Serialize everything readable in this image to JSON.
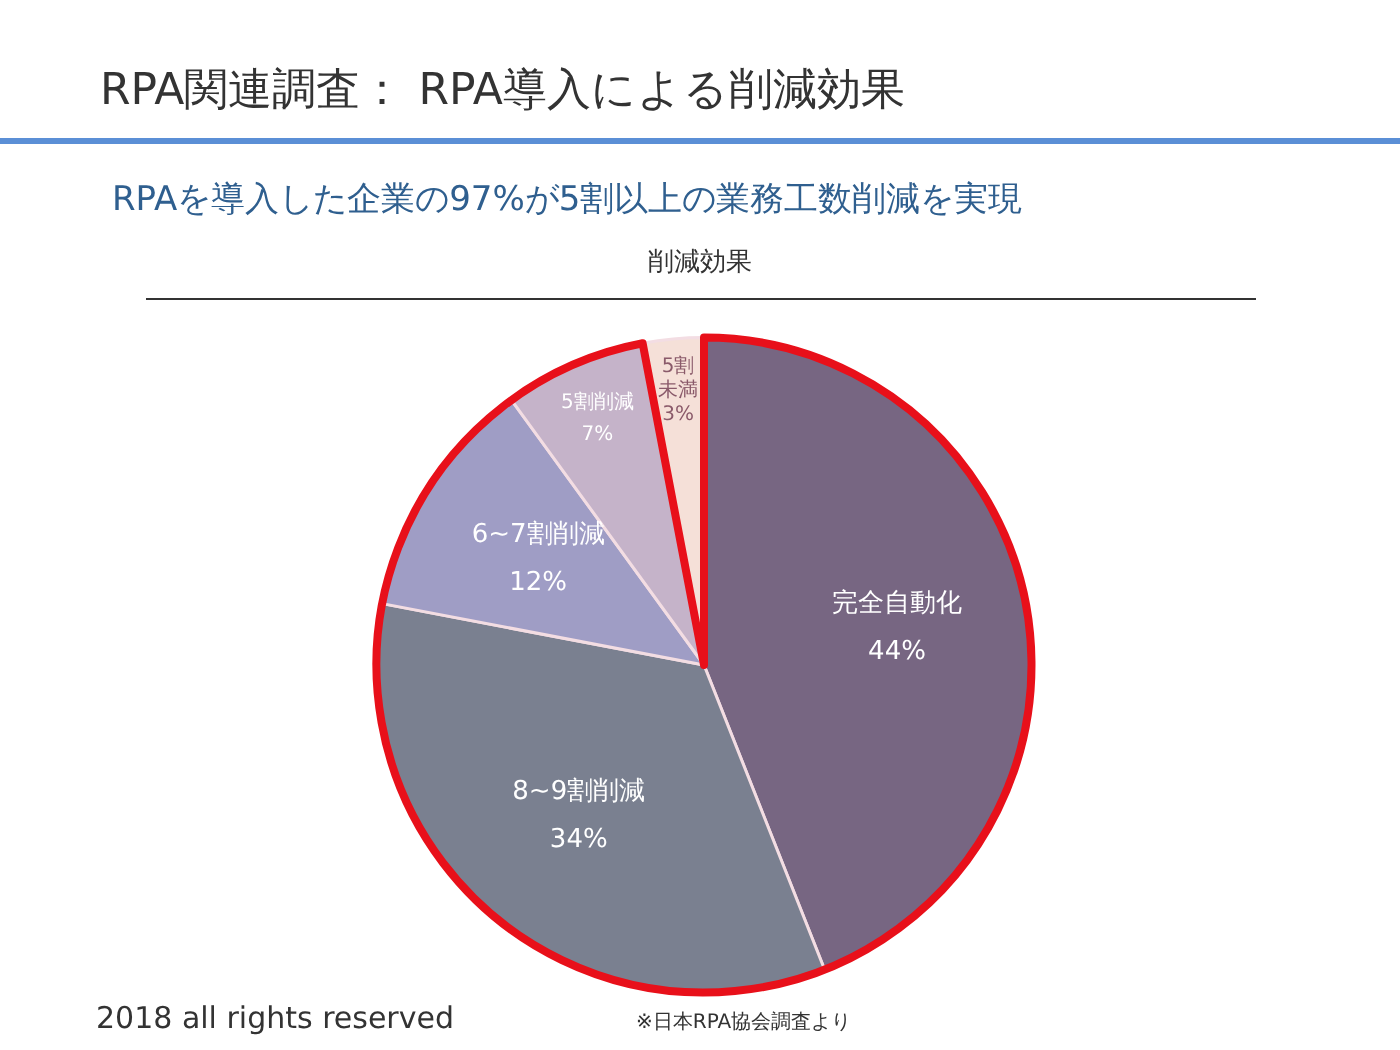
{
  "chart_data": {
    "type": "pie",
    "title": "RPA関連調査： RPA導入による削減効果",
    "subtitle": "RPAを導入した企業の97%が5割以上の業務工数削減を実現",
    "categories": [
      "完全自動化",
      "8~9割削減",
      "6~7割削減",
      "5割削減",
      "5割未満"
    ],
    "values": [
      44,
      34,
      12,
      7,
      3
    ],
    "value_labels": [
      "44%",
      "34%",
      "12%",
      "7%",
      "3%"
    ],
    "colors": [
      "#776682",
      "#7a8090",
      "#9f9dc5",
      "#c5b3c9",
      "#f5e0d8"
    ],
    "legend": false,
    "annotations": [
      "削減効果",
      "2018 all rights reserved",
      "※日本RPA協会調査より"
    ]
  }
}
